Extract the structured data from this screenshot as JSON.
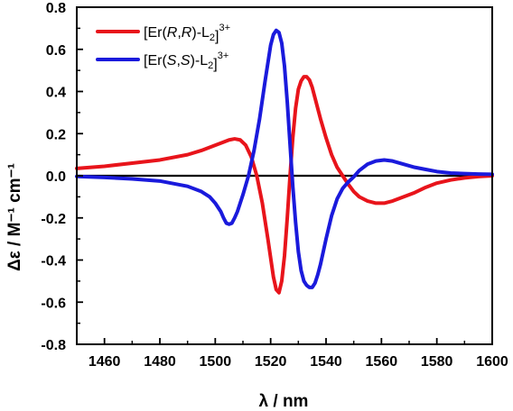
{
  "chart_data": {
    "type": "line",
    "xlabel": "λ / nm",
    "ylabel": "Δε / M⁻¹ cm⁻¹",
    "xlim": [
      1450,
      1600
    ],
    "ylim": [
      -0.8,
      0.8
    ],
    "xticks": [
      1460,
      1480,
      1500,
      1520,
      1540,
      1560,
      1580,
      1600
    ],
    "yticks": [
      -0.8,
      -0.6,
      -0.4,
      -0.2,
      0.0,
      0.2,
      0.4,
      0.6,
      0.8
    ],
    "x_tick_labels": [
      "1460",
      "1480",
      "1500",
      "1520",
      "1540",
      "1560",
      "1580",
      "1600"
    ],
    "y_tick_labels": [
      "-0.8",
      "-0.6",
      "-0.4",
      "-0.2",
      "0.0",
      "0.2",
      "0.4",
      "0.6",
      "0.8"
    ],
    "zero_line": true,
    "grid": false,
    "legend_position": "top-left",
    "series": [
      {
        "name": "[Er(R,R)-L2]3+",
        "color": "#e8141b",
        "x": [
          1450,
          1460,
          1470,
          1480,
          1490,
          1495,
          1500,
          1503,
          1505,
          1507,
          1509,
          1511,
          1513,
          1515,
          1517,
          1519,
          1521,
          1522,
          1523,
          1524,
          1525,
          1526,
          1527,
          1528,
          1529,
          1530,
          1531,
          1532,
          1533,
          1534,
          1535,
          1536,
          1537,
          1538,
          1540,
          1542,
          1544,
          1546,
          1548,
          1550,
          1552,
          1555,
          1558,
          1561,
          1564,
          1568,
          1572,
          1576,
          1580,
          1585,
          1590,
          1595,
          1600
        ],
        "y": [
          0.035,
          0.045,
          0.06,
          0.075,
          0.1,
          0.12,
          0.145,
          0.16,
          0.17,
          0.175,
          0.17,
          0.145,
          0.09,
          0.0,
          -0.13,
          -0.3,
          -0.48,
          -0.54,
          -0.555,
          -0.5,
          -0.38,
          -0.2,
          0.0,
          0.18,
          0.32,
          0.41,
          0.45,
          0.47,
          0.47,
          0.455,
          0.42,
          0.37,
          0.32,
          0.27,
          0.18,
          0.1,
          0.04,
          0.0,
          -0.04,
          -0.075,
          -0.1,
          -0.12,
          -0.13,
          -0.13,
          -0.12,
          -0.1,
          -0.08,
          -0.055,
          -0.035,
          -0.02,
          -0.01,
          -0.004,
          0.0
        ]
      },
      {
        "name": "[Er(S,S)-L2]3+",
        "color": "#1a1adc",
        "x": [
          1450,
          1460,
          1470,
          1480,
          1490,
          1495,
          1498,
          1500,
          1502,
          1503,
          1504,
          1505,
          1506,
          1507,
          1508,
          1509,
          1510,
          1512,
          1514,
          1516,
          1518,
          1520,
          1521,
          1522,
          1523,
          1524,
          1525,
          1526,
          1527,
          1528,
          1529,
          1530,
          1531,
          1532,
          1533,
          1534,
          1535,
          1536,
          1537,
          1538,
          1540,
          1542,
          1544,
          1546,
          1548,
          1550,
          1552,
          1555,
          1558,
          1561,
          1564,
          1568,
          1572,
          1576,
          1580,
          1585,
          1590,
          1595,
          1600
        ],
        "y": [
          -0.003,
          -0.008,
          -0.015,
          -0.025,
          -0.05,
          -0.075,
          -0.1,
          -0.13,
          -0.17,
          -0.2,
          -0.225,
          -0.23,
          -0.225,
          -0.2,
          -0.17,
          -0.13,
          -0.09,
          0.0,
          0.12,
          0.27,
          0.45,
          0.62,
          0.67,
          0.69,
          0.68,
          0.63,
          0.52,
          0.35,
          0.15,
          -0.05,
          -0.22,
          -0.36,
          -0.45,
          -0.5,
          -0.52,
          -0.53,
          -0.53,
          -0.51,
          -0.47,
          -0.42,
          -0.3,
          -0.19,
          -0.11,
          -0.06,
          -0.03,
          -0.005,
          0.025,
          0.055,
          0.07,
          0.075,
          0.07,
          0.055,
          0.04,
          0.03,
          0.02,
          0.013,
          0.01,
          0.008,
          0.007
        ]
      }
    ]
  }
}
